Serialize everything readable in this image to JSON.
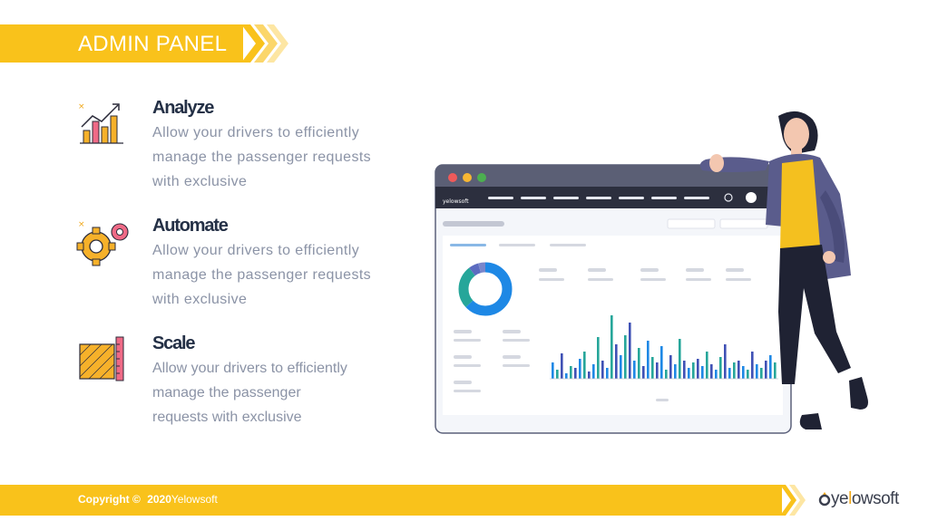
{
  "header": {
    "title": "ADMIN PANEL"
  },
  "features": [
    {
      "title": "Analyze",
      "description_lines": [
        "Allow your drivers to efficiently",
        "manage the passenger requests",
        "with exclusive"
      ],
      "icon": "chart-icon"
    },
    {
      "title": "Automate",
      "description_lines": [
        "Allow your drivers to efficiently",
        "manage the passenger requests",
        "with exclusive"
      ],
      "icon": "gears-icon"
    },
    {
      "title": "Scale",
      "description_lines": [
        "Allow your drivers to efficiently",
        "manage the passenger",
        "requests with  exclusive"
      ],
      "icon": "ruler-icon"
    }
  ],
  "footer": {
    "copyright": "Copyright ©",
    "year": "2020",
    "company": "Yelowsoft"
  },
  "logo": {
    "text_before": "ye",
    "text_accent": "l",
    "text_after": "owsoft"
  },
  "dashboard_mock": {
    "brand": "yelowsoft"
  },
  "colors": {
    "accent": "#f9c21b",
    "title": "#243046",
    "body_text": "#8b93a6"
  }
}
